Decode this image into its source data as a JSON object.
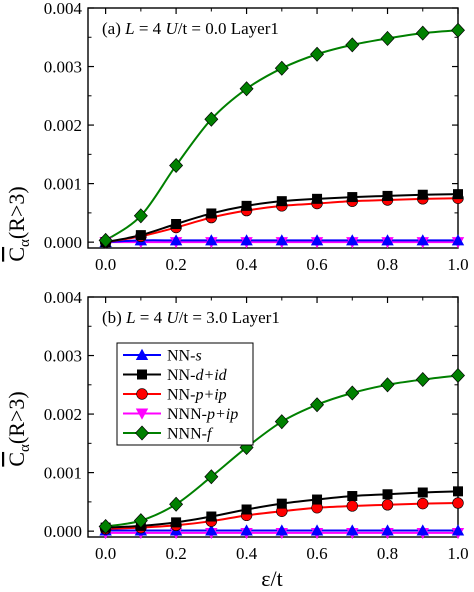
{
  "figure": {
    "ylabel_main": "C",
    "ylabel_sub": "α",
    "ylabel_tail": "(R>3)",
    "xlabel": "ε/t"
  },
  "legend": [
    {
      "label": "NN-s",
      "marker": "triangle-up",
      "color": "#0000ff"
    },
    {
      "label": "NN-d+id",
      "marker": "square",
      "color": "#000000"
    },
    {
      "label": "NN-p+ip",
      "marker": "circle",
      "color": "#ff0000"
    },
    {
      "label": "NNN-p+ip",
      "marker": "triangle-down",
      "color": "#ff00ff"
    },
    {
      "label": "NNN-f",
      "marker": "diamond",
      "color": "#008000"
    }
  ],
  "colors": {
    "NN-s": "#0000ff",
    "NN-d+id": "#000000",
    "NN-p+ip": "#ff0000",
    "NNN-p+ip": "#ff00ff",
    "NNN-f": "#008000",
    "marker_edge": "#000000"
  },
  "chart_data": [
    {
      "type": "line",
      "panel_label": "(a) L = 4 U/t = 0.0 Layer1",
      "panel_parts": [
        "(a) ",
        "L",
        " = 4 ",
        "U",
        "/t = 0.0 Layer1"
      ],
      "x": [
        0.0,
        0.1,
        0.2,
        0.3,
        0.4,
        0.5,
        0.6,
        0.7,
        0.8,
        0.9,
        1.0
      ],
      "xlim": [
        -0.05,
        1.0
      ],
      "ylim": [
        -0.0001,
        0.004
      ],
      "xticks": [
        0.0,
        0.2,
        0.4,
        0.6,
        0.8,
        1.0
      ],
      "xtick_labels": [
        "0.0",
        "0.2",
        "0.4",
        "0.6",
        "0.8",
        "1.0"
      ],
      "yticks": [
        0.0,
        0.001,
        0.002,
        0.003,
        0.004
      ],
      "ytick_labels": [
        "0.000",
        "0.001",
        "0.002",
        "0.003",
        "0.004"
      ],
      "series": [
        {
          "name": "NN-s",
          "values": [
            0.0,
            3e-05,
            3e-05,
            3e-05,
            3e-05,
            3e-05,
            3e-05,
            3e-05,
            3e-05,
            3e-05,
            3e-05
          ]
        },
        {
          "name": "NN-d+id",
          "values": [
            0.0,
            0.00012,
            0.00031,
            0.00049,
            0.00062,
            0.0007,
            0.00074,
            0.00077,
            0.00079,
            0.00081,
            0.00082
          ]
        },
        {
          "name": "NN-p+ip",
          "values": [
            0.0,
            0.0001,
            0.00025,
            0.00042,
            0.00054,
            0.00062,
            0.00066,
            0.0007,
            0.00072,
            0.00074,
            0.00075
          ]
        },
        {
          "name": "NNN-p+ip",
          "values": [
            0.0,
            0.0,
            0.0,
            0.0,
            0.0,
            0.0,
            0.0,
            0.0,
            0.0,
            0.0,
            0.0
          ]
        },
        {
          "name": "NNN-f",
          "values": [
            3e-05,
            0.00045,
            0.00131,
            0.0021,
            0.00262,
            0.00297,
            0.00321,
            0.00337,
            0.00348,
            0.00357,
            0.00362
          ]
        }
      ]
    },
    {
      "type": "line",
      "panel_label": "(b) L = 4 U/t = 3.0 Layer1",
      "panel_parts": [
        "(b) ",
        "L",
        " = 4 ",
        "U",
        "/t = 3.0 Layer1"
      ],
      "x": [
        0.0,
        0.1,
        0.2,
        0.3,
        0.4,
        0.5,
        0.6,
        0.7,
        0.8,
        0.9,
        1.0
      ],
      "xlim": [
        -0.05,
        1.0
      ],
      "ylim": [
        -0.0001,
        0.004
      ],
      "xticks": [
        0.0,
        0.2,
        0.4,
        0.6,
        0.8,
        1.0
      ],
      "xtick_labels": [
        "0.0",
        "0.2",
        "0.4",
        "0.6",
        "0.8",
        "1.0"
      ],
      "yticks": [
        0.0,
        0.001,
        0.002,
        0.003,
        0.004
      ],
      "ytick_labels": [
        "0.000",
        "0.001",
        "0.002",
        "0.003",
        "0.004"
      ],
      "series": [
        {
          "name": "NN-s",
          "values": [
            1e-05,
            1e-05,
            1e-05,
            1e-05,
            1e-05,
            1e-05,
            1e-05,
            1e-05,
            1e-05,
            1e-05,
            1e-05
          ]
        },
        {
          "name": "NN-d+id",
          "values": [
            6e-05,
            9e-05,
            0.00015,
            0.00025,
            0.00037,
            0.00047,
            0.00054,
            0.0006,
            0.00063,
            0.00066,
            0.00068
          ]
        },
        {
          "name": "NN-p+ip",
          "values": [
            4e-05,
            6e-05,
            0.0001,
            0.00017,
            0.00027,
            0.00034,
            0.0004,
            0.00043,
            0.00045,
            0.00047,
            0.00048
          ]
        },
        {
          "name": "NNN-p+ip",
          "values": [
            -3e-05,
            -3e-05,
            -3e-05,
            -3e-05,
            -3e-05,
            -3e-05,
            -3e-05,
            -3e-05,
            -3e-05,
            -3e-05,
            -3e-05
          ]
        },
        {
          "name": "NNN-f",
          "values": [
            8e-05,
            0.00018,
            0.00046,
            0.00093,
            0.00143,
            0.00187,
            0.00216,
            0.00236,
            0.0025,
            0.00259,
            0.00266
          ]
        }
      ]
    }
  ]
}
